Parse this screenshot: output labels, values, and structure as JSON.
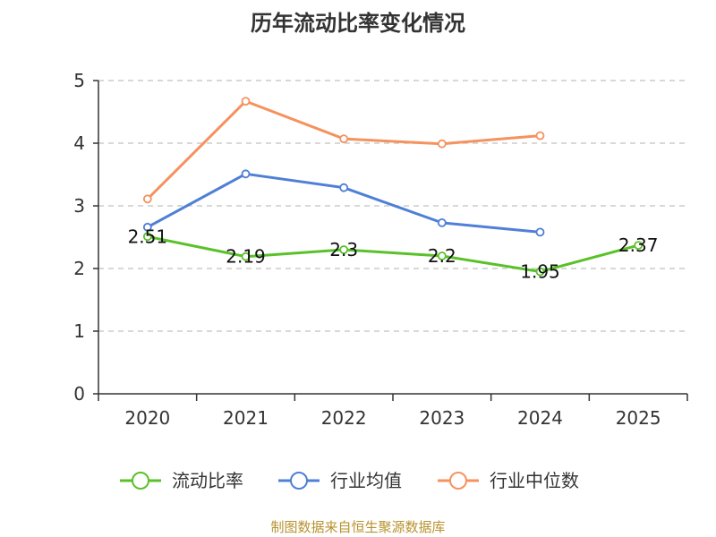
{
  "chart_data": {
    "type": "line",
    "title": "历年流动比率变化情况",
    "categories": [
      "2020",
      "2021",
      "2022",
      "2023",
      "2024",
      "2025"
    ],
    "ylim": [
      0,
      5
    ],
    "yticks": [
      0,
      1,
      2,
      3,
      4,
      5
    ],
    "xlabel": "",
    "ylabel": "",
    "grid": "horizontal-dashed",
    "legend_position": "bottom",
    "series": [
      {
        "name": "流动比率",
        "color": "#5ac12a",
        "values": [
          2.51,
          2.19,
          2.3,
          2.2,
          1.95,
          2.37
        ],
        "labels": [
          "2.51",
          "2.19",
          "2.3",
          "2.2",
          "1.95",
          "2.37"
        ]
      },
      {
        "name": "行业均值",
        "color": "#4f7fd6",
        "values": [
          2.66,
          3.51,
          3.29,
          2.73,
          2.58,
          null
        ]
      },
      {
        "name": "行业中位数",
        "color": "#f5925e",
        "values": [
          3.11,
          4.67,
          4.07,
          3.99,
          4.12,
          null
        ]
      }
    ]
  },
  "footer": {
    "source": "制图数据来自恒生聚源数据库"
  }
}
